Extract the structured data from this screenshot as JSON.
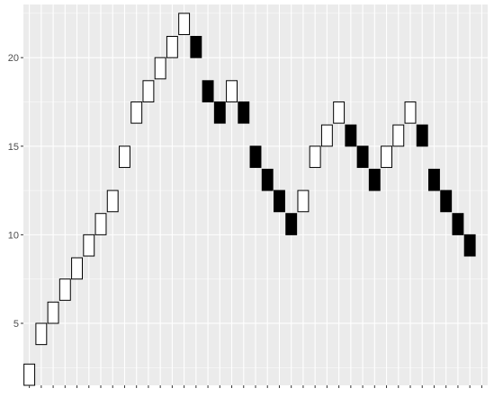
{
  "chart_data": {
    "type": "bar",
    "description_free": true,
    "x": [
      1,
      2,
      3,
      4,
      5,
      6,
      7,
      8,
      9,
      10,
      11,
      12,
      13,
      14,
      15,
      16,
      17,
      18,
      19,
      20,
      21,
      22,
      23,
      24,
      25,
      26,
      27,
      28,
      29,
      30,
      31,
      32,
      33,
      34,
      35,
      36,
      37,
      38,
      39
    ],
    "bricks": [
      {
        "x": 1,
        "low": 1.5,
        "high": 2.7,
        "dir": "up"
      },
      {
        "x": 2,
        "low": 3.8,
        "high": 5.0,
        "dir": "up"
      },
      {
        "x": 3,
        "low": 5.0,
        "high": 6.2,
        "dir": "up"
      },
      {
        "x": 4,
        "low": 6.3,
        "high": 7.5,
        "dir": "up"
      },
      {
        "x": 5,
        "low": 7.5,
        "high": 8.7,
        "dir": "up"
      },
      {
        "x": 6,
        "low": 8.8,
        "high": 10.0,
        "dir": "up"
      },
      {
        "x": 7,
        "low": 10.0,
        "high": 11.2,
        "dir": "up"
      },
      {
        "x": 8,
        "low": 11.3,
        "high": 12.5,
        "dir": "up"
      },
      {
        "x": 9,
        "low": 13.8,
        "high": 15.0,
        "dir": "up"
      },
      {
        "x": 10,
        "low": 16.3,
        "high": 17.5,
        "dir": "up"
      },
      {
        "x": 11,
        "low": 17.5,
        "high": 18.7,
        "dir": "up"
      },
      {
        "x": 12,
        "low": 18.8,
        "high": 20.0,
        "dir": "up"
      },
      {
        "x": 13,
        "low": 20.0,
        "high": 21.2,
        "dir": "up"
      },
      {
        "x": 14,
        "low": 21.3,
        "high": 22.5,
        "dir": "up"
      },
      {
        "x": 15,
        "low": 20.0,
        "high": 21.2,
        "dir": "down"
      },
      {
        "x": 16,
        "low": 17.5,
        "high": 18.7,
        "dir": "down"
      },
      {
        "x": 17,
        "low": 16.3,
        "high": 17.5,
        "dir": "down"
      },
      {
        "x": 18,
        "low": 17.5,
        "high": 18.7,
        "dir": "up"
      },
      {
        "x": 19,
        "low": 16.3,
        "high": 17.5,
        "dir": "down"
      },
      {
        "x": 20,
        "low": 13.8,
        "high": 15.0,
        "dir": "down"
      },
      {
        "x": 21,
        "low": 12.5,
        "high": 13.7,
        "dir": "down"
      },
      {
        "x": 22,
        "low": 11.3,
        "high": 12.5,
        "dir": "down"
      },
      {
        "x": 23,
        "low": 10.0,
        "high": 11.2,
        "dir": "down"
      },
      {
        "x": 24,
        "low": 11.3,
        "high": 12.5,
        "dir": "up"
      },
      {
        "x": 25,
        "low": 13.8,
        "high": 15.0,
        "dir": "up"
      },
      {
        "x": 26,
        "low": 15.0,
        "high": 16.2,
        "dir": "up"
      },
      {
        "x": 27,
        "low": 16.3,
        "high": 17.5,
        "dir": "up"
      },
      {
        "x": 28,
        "low": 15.0,
        "high": 16.2,
        "dir": "down"
      },
      {
        "x": 29,
        "low": 13.8,
        "high": 15.0,
        "dir": "down"
      },
      {
        "x": 30,
        "low": 12.5,
        "high": 13.7,
        "dir": "down"
      },
      {
        "x": 31,
        "low": 13.8,
        "high": 15.0,
        "dir": "up"
      },
      {
        "x": 32,
        "low": 15.0,
        "high": 16.2,
        "dir": "up"
      },
      {
        "x": 33,
        "low": 16.3,
        "high": 17.5,
        "dir": "up"
      },
      {
        "x": 34,
        "low": 15.0,
        "high": 16.2,
        "dir": "down"
      },
      {
        "x": 35,
        "low": 12.5,
        "high": 13.7,
        "dir": "down"
      },
      {
        "x": 36,
        "low": 11.3,
        "high": 12.5,
        "dir": "down"
      },
      {
        "x": 37,
        "low": 10.0,
        "high": 11.2,
        "dir": "down"
      },
      {
        "x": 38,
        "low": 8.8,
        "high": 10.0,
        "dir": "down"
      }
    ],
    "yticks": [
      5,
      10,
      15,
      20
    ],
    "ytick_labels": [
      "5",
      "10",
      "15",
      "20"
    ],
    "xlim": [
      0.5,
      39.5
    ],
    "ylim": [
      1.5,
      23.0
    ],
    "grid": true,
    "colors": {
      "panel": "#ebebeb",
      "grid": "#ffffff",
      "up_fill": "#ffffff",
      "down_fill": "#000000",
      "outline": "#000000",
      "tick": "#333333"
    }
  }
}
